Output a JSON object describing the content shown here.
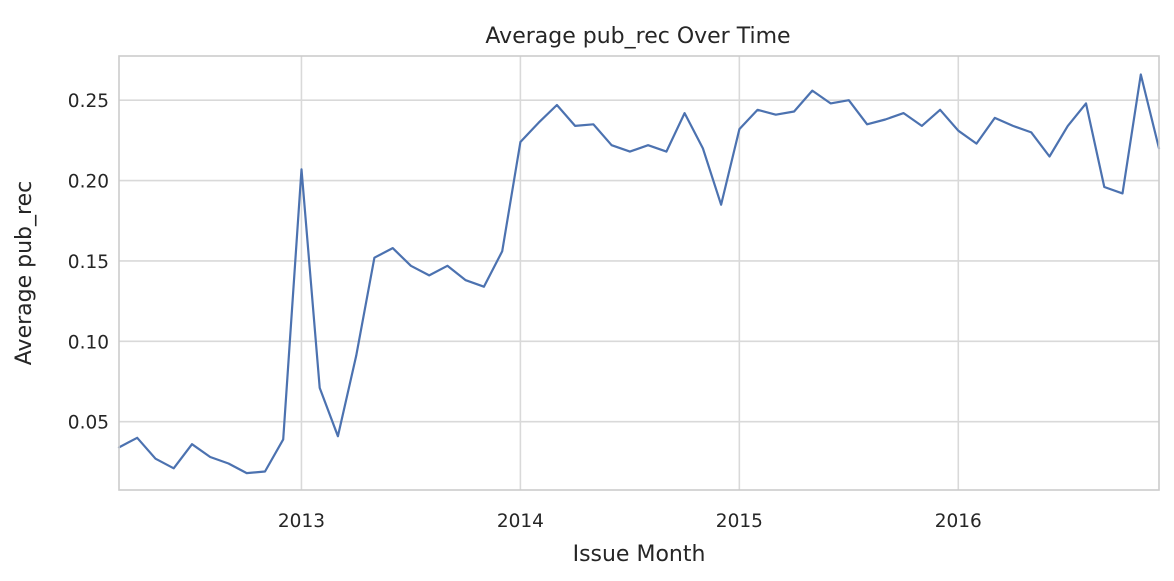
{
  "chart_data": {
    "type": "line",
    "title": "Average pub_rec Over Time",
    "xlabel": "Issue Month",
    "ylabel": "Average pub_rec",
    "grid": true,
    "xlim": [
      "2012-03",
      "2016-12"
    ],
    "ylim": [
      0.0075,
      0.2775
    ],
    "x_ticks": [
      {
        "label": "2013",
        "value": "2013-01"
      },
      {
        "label": "2014",
        "value": "2014-01"
      },
      {
        "label": "2015",
        "value": "2015-01"
      },
      {
        "label": "2016",
        "value": "2016-01"
      }
    ],
    "y_ticks": [
      {
        "label": "0.05",
        "value": 0.05
      },
      {
        "label": "0.10",
        "value": 0.1
      },
      {
        "label": "0.15",
        "value": 0.15
      },
      {
        "label": "0.20",
        "value": 0.2
      },
      {
        "label": "0.25",
        "value": 0.25
      }
    ],
    "series": [
      {
        "color": "#4c72b0",
        "x": [
          "2012-03",
          "2012-04",
          "2012-05",
          "2012-06",
          "2012-07",
          "2012-08",
          "2012-09",
          "2012-10",
          "2012-11",
          "2012-12",
          "2013-01",
          "2013-02",
          "2013-03",
          "2013-04",
          "2013-05",
          "2013-06",
          "2013-07",
          "2013-08",
          "2013-09",
          "2013-10",
          "2013-11",
          "2013-12",
          "2014-01",
          "2014-02",
          "2014-03",
          "2014-04",
          "2014-05",
          "2014-06",
          "2014-07",
          "2014-08",
          "2014-09",
          "2014-10",
          "2014-11",
          "2014-12",
          "2015-01",
          "2015-02",
          "2015-03",
          "2015-04",
          "2015-05",
          "2015-06",
          "2015-07",
          "2015-08",
          "2015-09",
          "2015-10",
          "2015-11",
          "2015-12",
          "2016-01",
          "2016-02",
          "2016-03",
          "2016-04",
          "2016-05",
          "2016-06",
          "2016-07",
          "2016-08",
          "2016-09",
          "2016-10",
          "2016-11",
          "2016-12"
        ],
        "values": [
          0.034,
          0.04,
          0.027,
          0.021,
          0.036,
          0.028,
          0.024,
          0.018,
          0.019,
          0.039,
          0.207,
          0.071,
          0.041,
          0.091,
          0.152,
          0.158,
          0.147,
          0.141,
          0.147,
          0.138,
          0.134,
          0.156,
          0.224,
          0.236,
          0.247,
          0.234,
          0.235,
          0.222,
          0.218,
          0.222,
          0.218,
          0.242,
          0.22,
          0.185,
          0.232,
          0.244,
          0.241,
          0.243,
          0.256,
          0.248,
          0.25,
          0.235,
          0.238,
          0.242,
          0.234,
          0.244,
          0.231,
          0.223,
          0.239,
          0.234,
          0.23,
          0.215,
          0.234,
          0.248,
          0.196,
          0.192,
          0.266,
          0.22
        ]
      }
    ]
  }
}
